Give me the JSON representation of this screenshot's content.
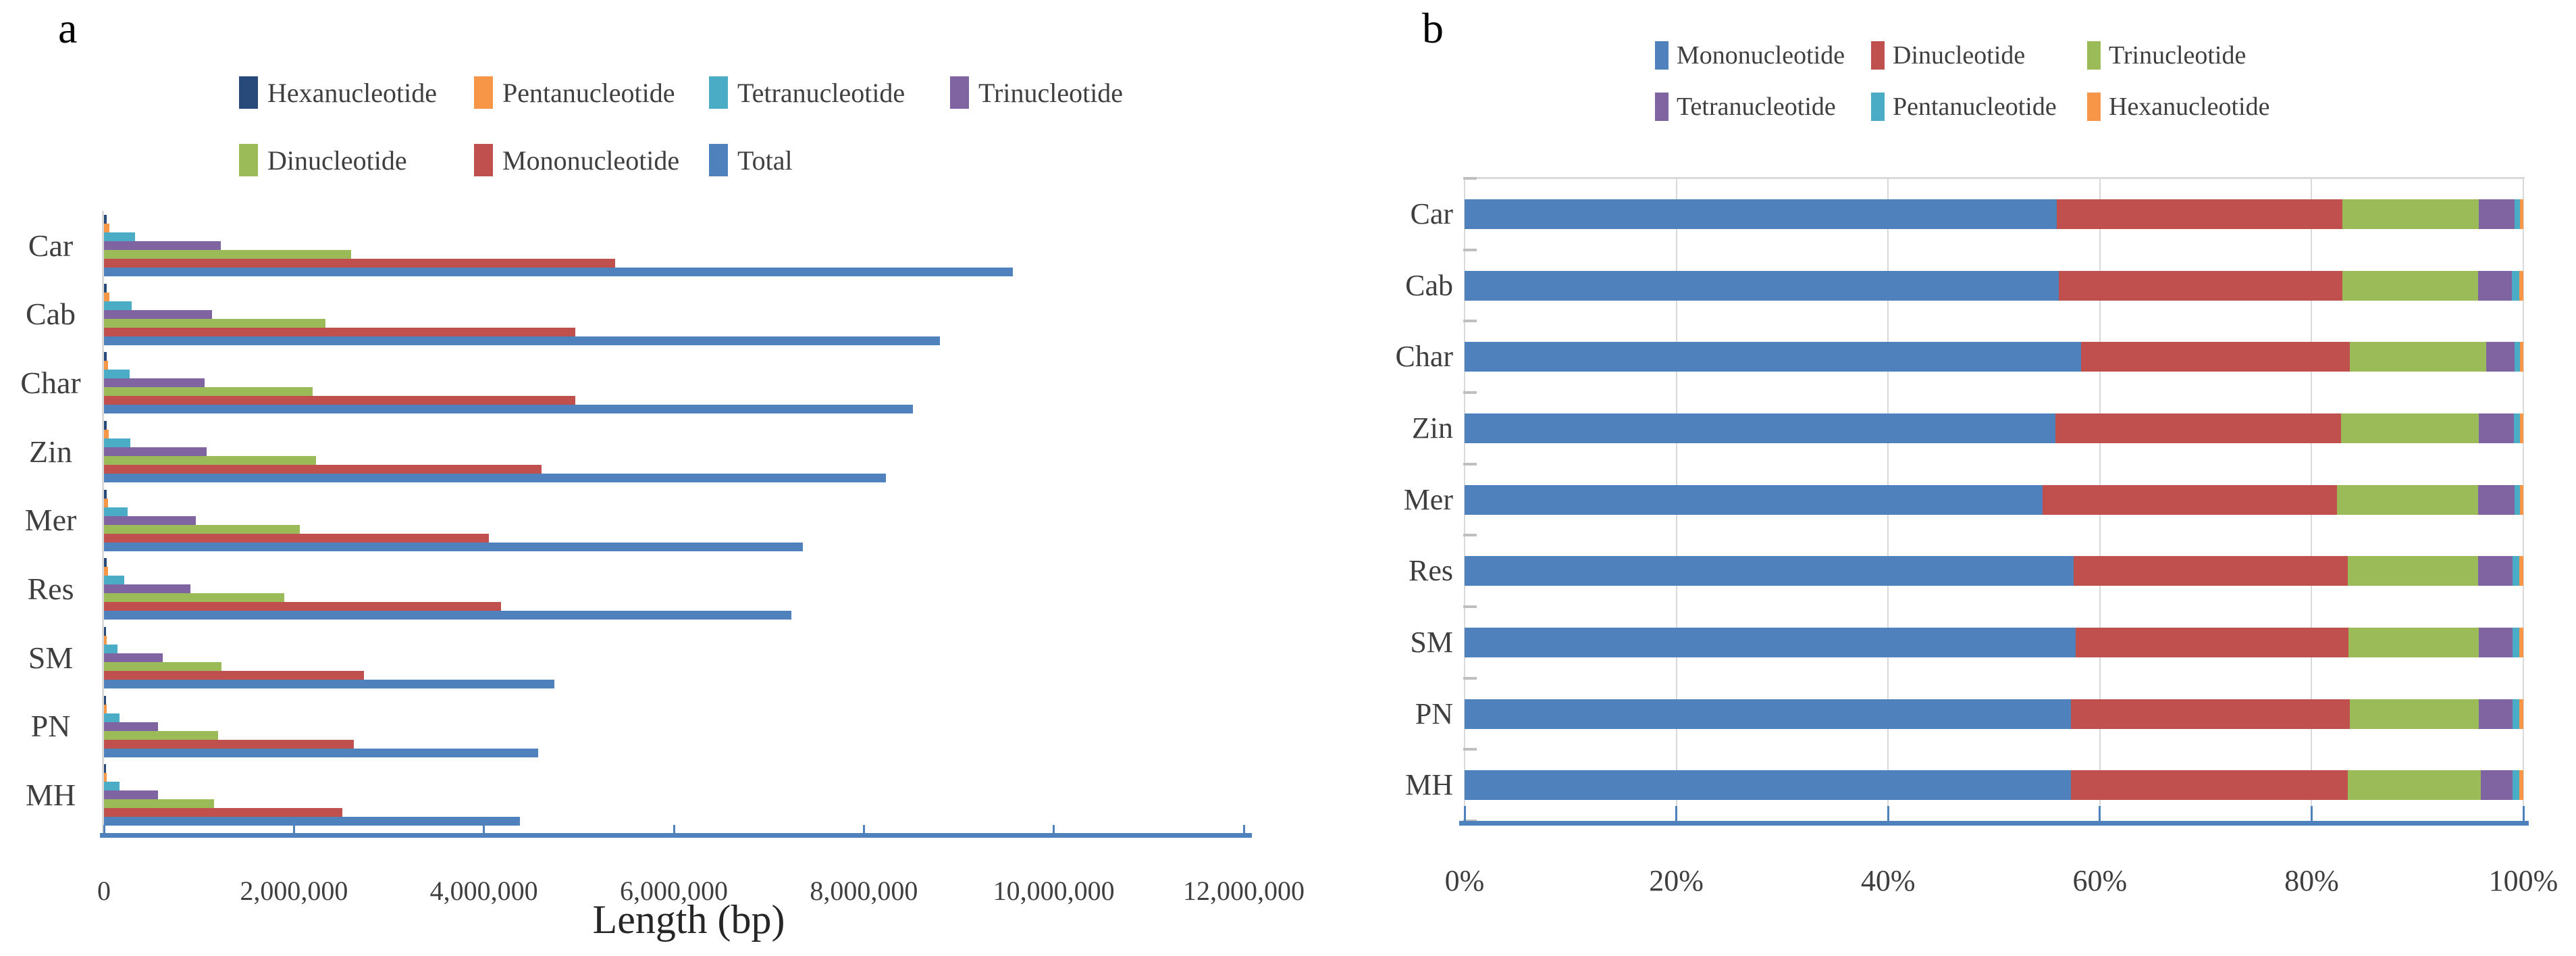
{
  "panels": {
    "a": {
      "letter": "a"
    },
    "b": {
      "letter": "b"
    }
  },
  "chart_data": [
    {
      "id": "a",
      "type": "bar",
      "orientation": "horizontal-grouped",
      "title": "",
      "xlabel": "Length (bp)",
      "ylabel": "",
      "xlim": [
        0,
        12000000
      ],
      "grid": false,
      "legend_position": "top",
      "x_ticks": [
        "0",
        "2,000,000",
        "4,000,000",
        "6,000,000",
        "8,000,000",
        "10,000,000",
        "12,000,000"
      ],
      "x_tick_values": [
        0,
        2000000,
        4000000,
        6000000,
        8000000,
        10000000,
        12000000
      ],
      "categories": [
        "Car",
        "Cab",
        "Char",
        "Zin",
        "Mer",
        "Res",
        "SM",
        "PN",
        "MH"
      ],
      "bar_order_top_to_bottom": [
        "Hexanucleotide",
        "Pentanucleotide",
        "Tetranucleotide",
        "Trinucleotide",
        "Dinucleotide",
        "Mononucleotide",
        "Total"
      ],
      "series": [
        {
          "name": "Hexanucleotide",
          "color": "#274A7A",
          "values": [
            25000,
            25000,
            30000,
            25000,
            25000,
            30000,
            20000,
            20000,
            20000
          ]
        },
        {
          "name": "Pentanucleotide",
          "color": "#F79646",
          "values": [
            55000,
            60000,
            45000,
            50000,
            40000,
            45000,
            30000,
            30000,
            30000
          ]
        },
        {
          "name": "Tetranucleotide",
          "color": "#4BACC6",
          "values": [
            330000,
            290000,
            270000,
            280000,
            250000,
            210000,
            140000,
            160000,
            160000
          ]
        },
        {
          "name": "Trinucleotide",
          "color": "#8064A2",
          "values": [
            1230000,
            1140000,
            1060000,
            1080000,
            970000,
            910000,
            620000,
            570000,
            570000
          ]
        },
        {
          "name": "Dinucleotide",
          "color": "#9BBB59",
          "values": [
            2600000,
            2330000,
            2200000,
            2230000,
            2060000,
            1900000,
            1240000,
            1200000,
            1160000
          ]
        },
        {
          "name": "Mononucleotide",
          "color": "#C0504D",
          "values": [
            5380000,
            4960000,
            4960000,
            4610000,
            4050000,
            4180000,
            2740000,
            2630000,
            2510000
          ]
        },
        {
          "name": "Total",
          "color": "#4F81BD",
          "values": [
            9570000,
            8800000,
            8520000,
            8230000,
            7360000,
            7240000,
            4740000,
            4570000,
            4380000
          ]
        }
      ],
      "legend_rows": [
        [
          "Hexanucleotide",
          "Pentanucleotide",
          "Tetranucleotide",
          "Trinucleotide"
        ],
        [
          "Dinucleotide",
          "Mononucleotide",
          "Total"
        ]
      ]
    },
    {
      "id": "b",
      "type": "bar",
      "orientation": "horizontal-stacked-100pct",
      "title": "",
      "xlabel": "",
      "ylabel": "",
      "xlim": [
        0,
        100
      ],
      "grid": true,
      "legend_position": "top",
      "x_ticks": [
        "0%",
        "20%",
        "40%",
        "60%",
        "80%",
        "100%"
      ],
      "x_tick_values": [
        0,
        20,
        40,
        60,
        80,
        100
      ],
      "categories": [
        "Car",
        "Cab",
        "Char",
        "Zin",
        "Mer",
        "Res",
        "SM",
        "PN",
        "MH"
      ],
      "stack_order_left_to_right": [
        "Mononucleotide",
        "Dinucleotide",
        "Trinucleotide",
        "Tetranucleotide",
        "Pentanucleotide",
        "Hexanucleotide"
      ],
      "series": [
        {
          "name": "Mononucleotide",
          "color": "#4F81BD",
          "values": [
            55.9,
            56.1,
            58.2,
            55.8,
            54.6,
            57.5,
            57.7,
            57.3,
            57.3
          ]
        },
        {
          "name": "Dinucleotide",
          "color": "#C0504D",
          "values": [
            27.0,
            26.8,
            25.4,
            27.0,
            27.8,
            25.9,
            25.8,
            26.3,
            26.1
          ]
        },
        {
          "name": "Trinucleotide",
          "color": "#9BBB59",
          "values": [
            12.9,
            12.8,
            12.9,
            13.0,
            13.3,
            12.3,
            12.3,
            12.2,
            12.6
          ]
        },
        {
          "name": "Tetranucleotide",
          "color": "#8064A2",
          "values": [
            3.4,
            3.2,
            2.7,
            3.3,
            3.5,
            3.3,
            3.2,
            3.2,
            3.0
          ]
        },
        {
          "name": "Pentanucleotide",
          "color": "#4BACC6",
          "values": [
            0.5,
            0.7,
            0.5,
            0.6,
            0.5,
            0.6,
            0.6,
            0.6,
            0.6
          ]
        },
        {
          "name": "Hexanucleotide",
          "color": "#F79646",
          "values": [
            0.3,
            0.4,
            0.3,
            0.3,
            0.3,
            0.4,
            0.4,
            0.4,
            0.4
          ]
        }
      ],
      "legend_rows": [
        [
          "Mononucleotide",
          "Dinucleotide",
          "Trinucleotide"
        ],
        [
          "Tetranucleotide",
          "Pentanucleotide",
          "Hexanucleotide"
        ]
      ]
    }
  ],
  "style_colors": {
    "axis_blue": "#4F81BD",
    "grid_gray": "#D9D9D9",
    "text_gray": "#3F3F3F"
  }
}
